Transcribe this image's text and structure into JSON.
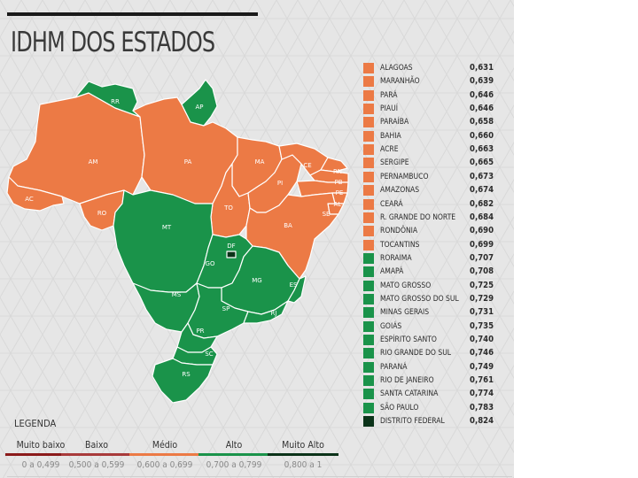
{
  "title": "IDHM DOS ESTADOS",
  "colors": {
    "muito_baixo": "#8b1a1a",
    "baixo": "#a83a3a",
    "medio": "#ec7a45",
    "alto": "#1a934a",
    "muito_alto": "#0b3319",
    "background": "#e6e6e6"
  },
  "ranking": [
    {
      "state": "ALAGOAS",
      "value": "0,631",
      "level": "medio"
    },
    {
      "state": "MARANHÃO",
      "value": "0,639",
      "level": "medio"
    },
    {
      "state": "PARÁ",
      "value": "0,646",
      "level": "medio"
    },
    {
      "state": "PIAUÍ",
      "value": "0,646",
      "level": "medio"
    },
    {
      "state": "PARAÍBA",
      "value": "0,658",
      "level": "medio"
    },
    {
      "state": "BAHIA",
      "value": "0,660",
      "level": "medio"
    },
    {
      "state": "ACRE",
      "value": "0,663",
      "level": "medio"
    },
    {
      "state": "SERGIPE",
      "value": "0,665",
      "level": "medio"
    },
    {
      "state": "PERNAMBUCO",
      "value": "0,673",
      "level": "medio"
    },
    {
      "state": "AMAZONAS",
      "value": "0,674",
      "level": "medio"
    },
    {
      "state": "CEARÁ",
      "value": "0,682",
      "level": "medio"
    },
    {
      "state": "R. GRANDE DO NORTE",
      "value": "0,684",
      "level": "medio"
    },
    {
      "state": "RONDÔNIA",
      "value": "0,690",
      "level": "medio"
    },
    {
      "state": "TOCANTINS",
      "value": "0,699",
      "level": "medio"
    },
    {
      "state": "RORAIMA",
      "value": "0,707",
      "level": "alto"
    },
    {
      "state": "AMAPÁ",
      "value": "0,708",
      "level": "alto"
    },
    {
      "state": "MATO GROSSO",
      "value": "0,725",
      "level": "alto"
    },
    {
      "state": "MATO GROSSO DO SUL",
      "value": "0,729",
      "level": "alto"
    },
    {
      "state": "MINAS GERAIS",
      "value": "0,731",
      "level": "alto"
    },
    {
      "state": "GOIÁS",
      "value": "0,735",
      "level": "alto"
    },
    {
      "state": "ESPÍRITO SANTO",
      "value": "0,740",
      "level": "alto"
    },
    {
      "state": "RIO GRANDE DO SUL",
      "value": "0,746",
      "level": "alto"
    },
    {
      "state": "PARANÁ",
      "value": "0,749",
      "level": "alto"
    },
    {
      "state": "RIO DE JANEIRO",
      "value": "0,761",
      "level": "alto"
    },
    {
      "state": "SANTA CATARINA",
      "value": "0,774",
      "level": "alto"
    },
    {
      "state": "SÃO PAULO",
      "value": "0,783",
      "level": "alto"
    },
    {
      "state": "DISTRITO FEDERAL",
      "value": "0,824",
      "level": "muito_alto"
    }
  ],
  "map_labels": {
    "RR": "RR",
    "AP": "AP",
    "AM": "AM",
    "PA": "PA",
    "MA": "MA",
    "CE": "CE",
    "RN": "RN",
    "PB": "PB",
    "PE": "PE",
    "AL": "AL",
    "SE": "SE",
    "PI": "PI",
    "AC": "AC",
    "RO": "RO",
    "TO": "TO",
    "BA": "BA",
    "MT": "MT",
    "DF": "DF",
    "GO": "GO",
    "MG": "MG",
    "ES": "ES",
    "MS": "MS",
    "SP": "SP",
    "RJ": "RJ",
    "PR": "PR",
    "SC": "SC",
    "RS": "RS"
  },
  "legend": {
    "title": "LEGENDA",
    "items": [
      {
        "name": "Muito baixo",
        "range": "0 a 0,499",
        "level": "muito_baixo"
      },
      {
        "name": "Baixo",
        "range": "0,500 a 0,599",
        "level": "baixo"
      },
      {
        "name": "Médio",
        "range": "0,600 a 0,699",
        "level": "medio"
      },
      {
        "name": "Alto",
        "range": "0,700 a 0,799",
        "level": "alto"
      },
      {
        "name": "Muito Alto",
        "range": "0,800 a 1",
        "level": "muito_alto"
      }
    ]
  }
}
